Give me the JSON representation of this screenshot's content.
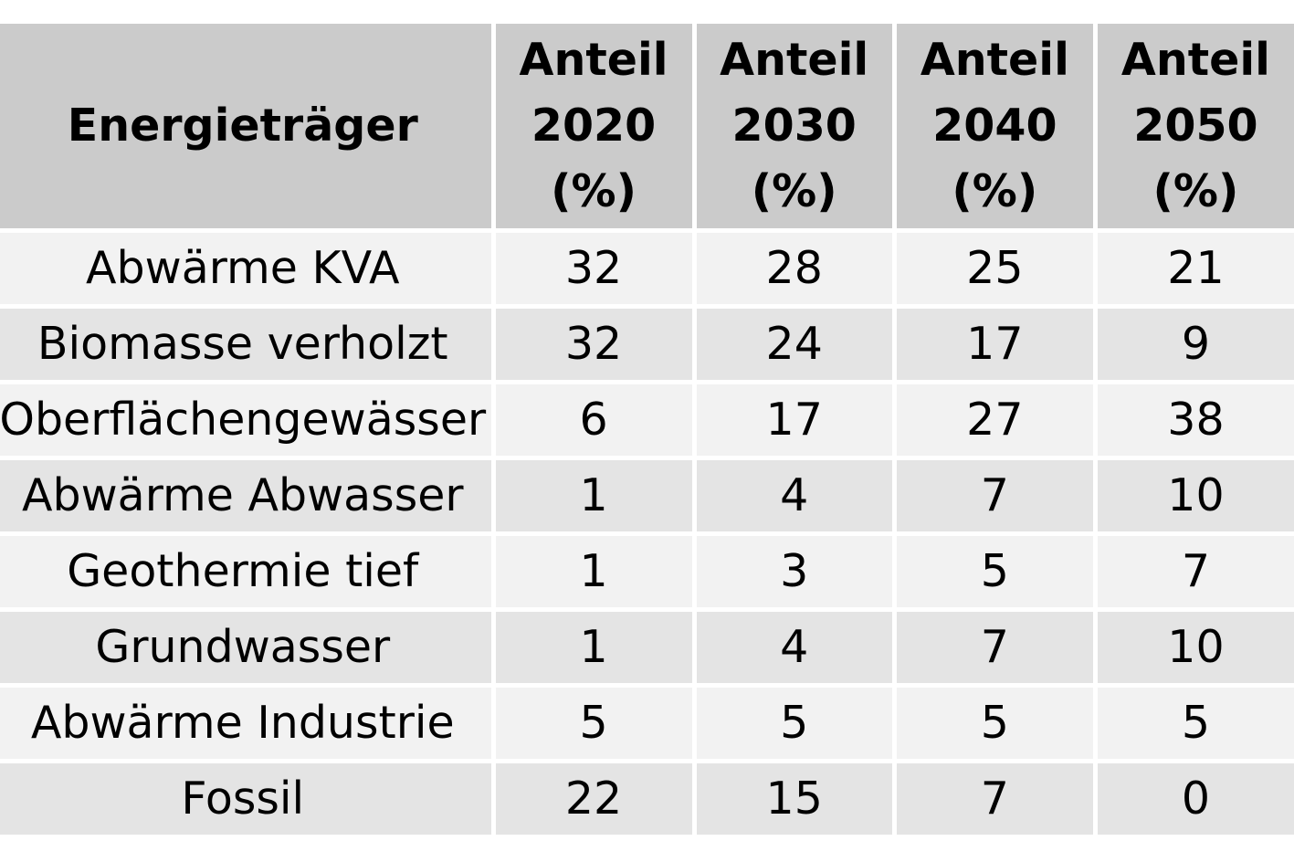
{
  "table": {
    "header": {
      "energietraeger": "Energieträger",
      "col_2020": [
        "Anteil",
        "2020",
        "(%)"
      ],
      "col_2030": [
        "Anteil",
        "2030",
        "(%)"
      ],
      "col_2040": [
        "Anteil",
        "2040",
        "(%)"
      ],
      "col_2050": [
        "Anteil",
        "2050",
        "(%)"
      ]
    },
    "rows": [
      {
        "name": "Abwärme KVA",
        "v2020": "32",
        "v2030": "28",
        "v2040": "25",
        "v2050": "21"
      },
      {
        "name": "Biomasse verholzt",
        "v2020": "32",
        "v2030": "24",
        "v2040": "17",
        "v2050": "9"
      },
      {
        "name": "Oberflächengewässer",
        "v2020": "6",
        "v2030": "17",
        "v2040": "27",
        "v2050": "38"
      },
      {
        "name": "Abwärme Abwasser",
        "v2020": "1",
        "v2030": "4",
        "v2040": "7",
        "v2050": "10"
      },
      {
        "name": "Geothermie tief",
        "v2020": "1",
        "v2030": "3",
        "v2040": "5",
        "v2050": "7"
      },
      {
        "name": "Grundwasser",
        "v2020": "1",
        "v2030": "4",
        "v2040": "7",
        "v2050": "10"
      },
      {
        "name": "Abwärme Industrie",
        "v2020": "5",
        "v2030": "5",
        "v2040": "5",
        "v2050": "5"
      },
      {
        "name": "Fossil",
        "v2020": "22",
        "v2030": "15",
        "v2040": "7",
        "v2050": "0"
      }
    ]
  }
}
